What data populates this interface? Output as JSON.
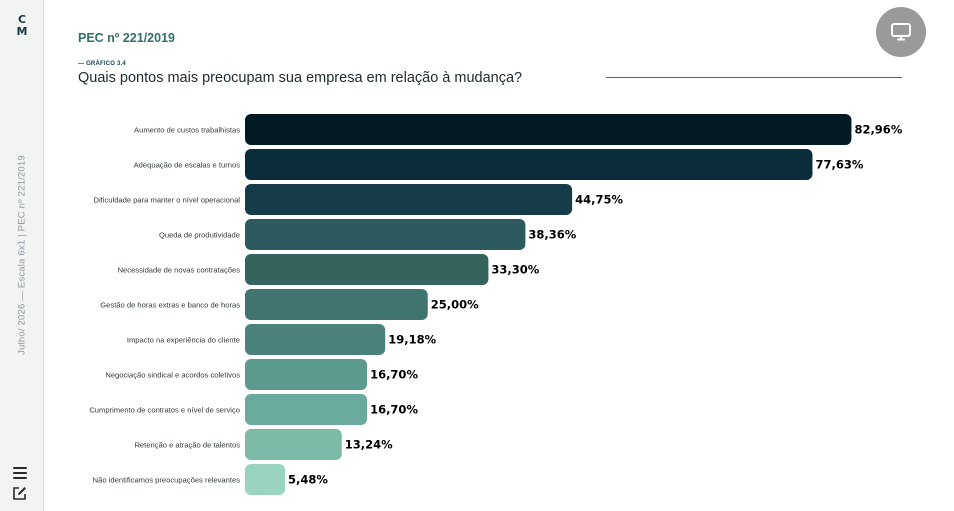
{
  "sidebar": {
    "logo_top": "C",
    "logo_bottom": "M",
    "caption": "Julho/ 2026  —  Escala 6x1 | PEC nº 221/2019",
    "menu_icon": "hamburger-icon",
    "edit_icon": "edit-icon"
  },
  "header": {
    "doc_title": "PEC nº 221/2019",
    "figure_label": "— GRÁFICO 3.4",
    "question": "Quais pontos mais preocupam sua empresa em relação à mudança?",
    "present_icon": "monitor-icon"
  },
  "colors": {
    "accent": "#2f6e6a",
    "bar_gradient": [
      "#031b23",
      "#0b2c3a",
      "#163c4a",
      "#2c5a5e",
      "#35645f",
      "#407470",
      "#4b837c",
      "#5c9a90",
      "#6aa99d",
      "#7dbaa8",
      "#9ad3bf"
    ]
  },
  "chart_data": {
    "type": "bar",
    "orientation": "horizontal",
    "categories": [
      "Aumento de custos trabalhistas",
      "Adequação de escalas e turnos",
      "Dificuldade para manter o nível operacional",
      "Queda de produtividade",
      "Necessidade de novas contratações",
      "Gestão de horas extras e banco de horas",
      "Impacto na experiência do cliente",
      "Negociação sindical e acordos coletivos",
      "Cumprimento de contratos e nível de serviço",
      "Retenção e atração de talentos",
      "Não identificamos preocupações relevantes"
    ],
    "values": [
      82.96,
      77.63,
      44.75,
      38.36,
      33.3,
      25.0,
      19.18,
      16.7,
      16.7,
      13.24,
      5.48
    ],
    "value_labels": [
      "82,96%",
      "77,63%",
      "44,75%",
      "38,36%",
      "33,30%",
      "25,00%",
      "19,18%",
      "16,70%",
      "16,70%",
      "13,24%",
      "5,48%"
    ],
    "unit": "%",
    "grid": false,
    "legend": "none"
  }
}
